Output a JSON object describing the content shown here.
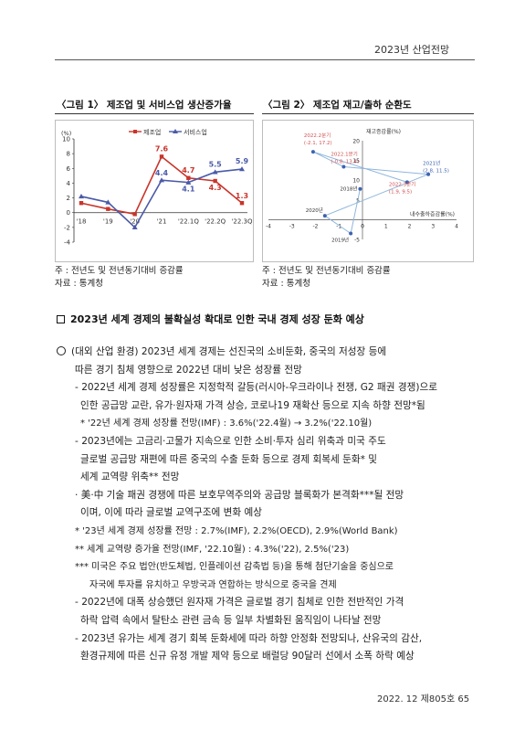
{
  "header": {
    "title": "2023년 산업전망"
  },
  "figure1": {
    "title": "〈그림 1〉  제조업 및 서비스업 생산증가율",
    "notes": [
      "주  : 전년도 및 전년동기대비 증감률",
      "자료 : 통계청"
    ]
  },
  "figure2": {
    "title": "〈그림 2〉  제조업 재고/출하 순환도",
    "notes": [
      "주  : 전년도 및 전년동기대비 증감률",
      "자료 : 통계청"
    ]
  },
  "chart_data": [
    {
      "type": "line",
      "title": "",
      "ylabel": "(%)",
      "ylim": [
        -4,
        10
      ],
      "yticks": [
        "10",
        "8",
        "6",
        "4",
        "2",
        "0",
        "-2",
        "-4"
      ],
      "categories": [
        "'18",
        "'19",
        "'20",
        "'21",
        "'22.1Q",
        "'22.2Q",
        "'22.3Q"
      ],
      "series": [
        {
          "name": "제조업",
          "color": "#c8352b",
          "values": [
            1.3,
            0.5,
            -0.2,
            7.6,
            4.7,
            4.3,
            1.3
          ]
        },
        {
          "name": "서비스업",
          "color": "#4a5aa8",
          "values": [
            2.2,
            1.4,
            -2.0,
            4.4,
            4.1,
            5.5,
            5.9
          ]
        }
      ],
      "data_labels": [
        {
          "text": "7.6",
          "color": "#c8352b"
        },
        {
          "text": "4.4",
          "color": "#4a5aa8"
        },
        {
          "text": "4.7",
          "color": "#c8352b"
        },
        {
          "text": "4.1",
          "color": "#4a5aa8"
        },
        {
          "text": "5.5",
          "color": "#4a5aa8"
        },
        {
          "text": "5.9",
          "color": "#4a5aa8"
        },
        {
          "text": "4.3",
          "color": "#c8352b"
        },
        {
          "text": "1.3",
          "color": "#c8352b"
        }
      ],
      "legend": "top-center",
      "grid": false
    },
    {
      "type": "scatter",
      "title": "",
      "ylabel": "재고증감률(%)",
      "xlabel": "내수출하증감률(%)",
      "xlim": [
        -4,
        4
      ],
      "ylim": [
        -5,
        20
      ],
      "xticks": [
        "-4",
        "-3",
        "-2",
        "-1",
        "0",
        "1",
        "2",
        "3",
        "4"
      ],
      "yticks": [
        "20",
        "15",
        "10",
        "5",
        "-5"
      ],
      "line_color": "#8fb6dc",
      "point_color": "#3e63b0",
      "label_color": "#d05050",
      "points": [
        {
          "x": -1.6,
          "y": 1.0,
          "label": "2020년",
          "label_color": "#333"
        },
        {
          "x": -0.5,
          "y": -3.5,
          "label": "2019년",
          "label_color": "#333"
        },
        {
          "x": -0.1,
          "y": 7.8,
          "label": "2018년",
          "label_color": "#333"
        },
        {
          "x": -2.1,
          "y": 17.2,
          "label": "2022.2분기",
          "value": "(-2.1, 17.2)",
          "label_color": "#d05050"
        },
        {
          "x": -0.8,
          "y": 13.4,
          "label": "2022.1분기",
          "value": "(-0.8, 13.4)",
          "label_color": "#d05050"
        },
        {
          "x": 1.9,
          "y": 9.5,
          "label": "2022.3분기",
          "value": "(1.9, 9.5)",
          "label_color": "#d05050"
        },
        {
          "x": 2.8,
          "y": 11.5,
          "label": "2021년",
          "value": "(2.8, 11.5)",
          "label_color": "#3e63b0"
        }
      ]
    }
  ],
  "section": {
    "title": "2023년 세계 경제의 불확실성 확대로 인한 국내 경제 성장 둔화 예상"
  },
  "body": {
    "p1": "(대외 산업 환경) 2023년 세계 경제는 선진국의 소비둔화, 중국의 저성장 등에",
    "p2": "따른 경기 침체 영향으로 2022년 대비 낮은 성장률 전망",
    "p3": "- 2022년 세계 경제 성장률은 지정학적 갈등(러시아-우크라이나 전쟁, G2 패권 경쟁)으로",
    "p4": "인한 공급망 교란, 유가·원자재 가격 상승, 코로나19 재확산 등으로 지속 하향 전망*됨",
    "p5": "* '22년 세계 경제 성장률 전망(IMF) : 3.6%('22.4월) → 3.2%('22.10월)",
    "p6": "- 2023년에는 고금리·고물가 지속으로 인한 소비·투자 심리 위축과 미국 주도",
    "p7": "글로벌 공급망 재편에 따른 중국의 수출 둔화 등으로 경제 회복세 둔화* 및",
    "p8": "세계 교역량 위축** 전망",
    "p9": "· 美·中 기술 패권 경쟁에 따른 보호무역주의와 공급망 블록화가 본격화***될 전망",
    "p10": "이며, 이에 따라 글로벌 교역구조에 변화 예상",
    "p11": "* '23년 세계 경제 성장률 전망 : 2.7%(IMF), 2.2%(OECD), 2.9%(World Bank)",
    "p12": "** 세계 교역량 증가율 전망(IMF, '22.10월) : 4.3%('22), 2.5%('23)",
    "p13": "*** 미국은 주요 법안(반도체법, 인플레이션 감축법 등)을 통해 첨단기술을 중심으로",
    "p14": "자국에 투자를 유치하고 우방국과 연합하는 방식으로 중국을 견제",
    "p15": "- 2022년에 대폭 상승했던 원자재 가격은 글로벌 경기 침체로 인한 전반적인 가격",
    "p16": "하락 압력 속에서 탈탄소 관련 금속 등 일부 차별화된 움직임이 나타날 전망",
    "p17": "- 2023년 유가는 세계 경기 회복 둔화세에 따라 하향 안정화 전망되나, 산유국의 감산,",
    "p18": "환경규제에 따른 신규 유정 개발 제약 등으로 배럴당 90달러 선에서 소폭 하락 예상"
  },
  "footer": {
    "text": "2022. 12 제805호  65"
  }
}
